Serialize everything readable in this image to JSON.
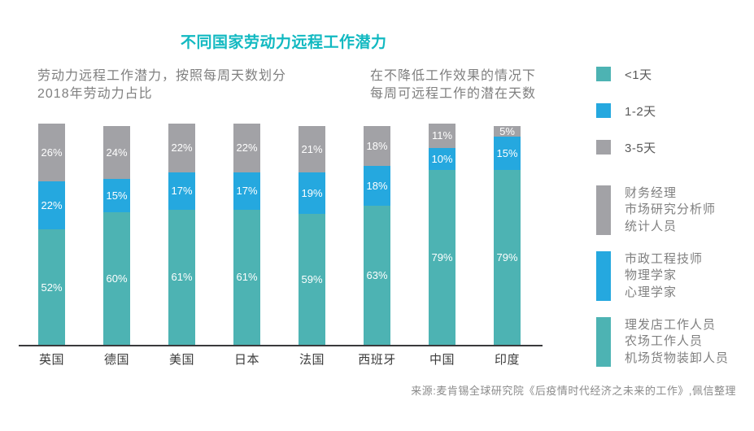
{
  "title": "不同国家劳动力远程工作潜力",
  "subtitle_left": {
    "line1": "劳动力远程工作潜力，按照每周天数划分",
    "line2": "2018年劳动力占比"
  },
  "subtitle_right": {
    "line1": "在不降低工作效果的情况下",
    "line2": "每周可远程工作的潜在天数"
  },
  "colors": {
    "teal": "#4db3b3",
    "blue": "#25a8df",
    "gray": "#a2a2a6",
    "title": "#12b9c1",
    "axis": "#3a3a3c"
  },
  "legend": {
    "items": [
      {
        "label": "<1天",
        "color": "#4db3b3"
      },
      {
        "label": "1-2天",
        "color": "#25a8df"
      },
      {
        "label": "3-5天",
        "color": "#a2a2a6"
      }
    ]
  },
  "occupations": {
    "groups": [
      {
        "color": "#a2a2a6",
        "lines": [
          "财务经理",
          "市场研究分析师",
          "统计人员"
        ]
      },
      {
        "color": "#25a8df",
        "lines": [
          "市政工程技师",
          "物理学家",
          "心理学家"
        ]
      },
      {
        "color": "#4db3b3",
        "lines": [
          "理发店工作人员",
          "农场工作人员",
          "机场货物装卸人员"
        ]
      }
    ]
  },
  "source": "来源:麦肯锡全球研究院《后疫情时代经济之未来的工作》,佩信整理",
  "chart_data": {
    "type": "bar",
    "stacked": true,
    "orientation": "vertical",
    "unit": "%",
    "ylim": [
      0,
      100
    ],
    "grid": false,
    "categories": [
      "英国",
      "德国",
      "美国",
      "日本",
      "法国",
      "西班牙",
      "中国",
      "印度"
    ],
    "series": [
      {
        "name": "<1天",
        "color": "#4db3b3",
        "values": [
          52,
          60,
          61,
          61,
          59,
          63,
          79,
          79
        ]
      },
      {
        "name": "1-2天",
        "color": "#25a8df",
        "values": [
          22,
          15,
          17,
          17,
          19,
          18,
          10,
          15
        ]
      },
      {
        "name": "3-5天",
        "color": "#a2a2a6",
        "values": [
          26,
          24,
          22,
          22,
          21,
          18,
          11,
          5
        ]
      }
    ]
  }
}
